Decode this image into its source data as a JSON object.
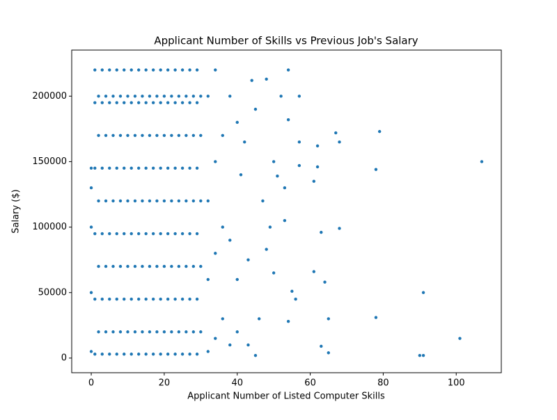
{
  "chart_data": {
    "type": "scatter",
    "title": "Applicant Number of Skills vs Previous Job's Salary",
    "x_label": "Applicant Number of Listed Computer Skills",
    "y_label": "Salary ($)",
    "color": "#1f77b4",
    "xlim": [
      -5.35,
      112.35
    ],
    "ylim": [
      -11200,
      235200
    ],
    "xticks": [
      0,
      20,
      40,
      60,
      80,
      100
    ],
    "yticks": [
      0,
      50000,
      100000,
      150000,
      200000
    ],
    "x": [
      0,
      0,
      0,
      0,
      0,
      1,
      1,
      1,
      1,
      1,
      1,
      2,
      2,
      2,
      2,
      2,
      3,
      3,
      3,
      3,
      3,
      3,
      4,
      4,
      4,
      4,
      4,
      5,
      5,
      5,
      5,
      5,
      5,
      6,
      6,
      6,
      6,
      6,
      7,
      7,
      7,
      7,
      7,
      7,
      8,
      8,
      8,
      8,
      8,
      9,
      9,
      9,
      9,
      9,
      9,
      10,
      10,
      10,
      10,
      10,
      11,
      11,
      11,
      11,
      11,
      11,
      12,
      12,
      12,
      12,
      12,
      13,
      13,
      13,
      13,
      13,
      13,
      14,
      14,
      14,
      14,
      14,
      15,
      15,
      15,
      15,
      15,
      15,
      16,
      16,
      16,
      16,
      16,
      17,
      17,
      17,
      17,
      17,
      17,
      18,
      18,
      18,
      18,
      18,
      19,
      19,
      19,
      19,
      19,
      19,
      20,
      20,
      20,
      20,
      20,
      21,
      21,
      21,
      21,
      21,
      21,
      22,
      22,
      22,
      22,
      22,
      23,
      23,
      23,
      23,
      23,
      23,
      24,
      24,
      24,
      24,
      24,
      25,
      25,
      25,
      25,
      25,
      25,
      26,
      26,
      26,
      26,
      26,
      27,
      27,
      27,
      27,
      27,
      27,
      28,
      28,
      28,
      28,
      28,
      29,
      29,
      29,
      29,
      29,
      29,
      30,
      30,
      30,
      30,
      30,
      32,
      32,
      32,
      32,
      34,
      34,
      34,
      34,
      36,
      36,
      36,
      38,
      38,
      38,
      40,
      40,
      40,
      107,
      101,
      91,
      90,
      91,
      79,
      78,
      78,
      68,
      67,
      68,
      63,
      64,
      61,
      62,
      62,
      61,
      65,
      65,
      63,
      57,
      54,
      54,
      57,
      57,
      56,
      55,
      54,
      52,
      50,
      51,
      53,
      53,
      48,
      48,
      45,
      47,
      50,
      49,
      46,
      45,
      43,
      44,
      42,
      41,
      43
    ],
    "values": [
      5000,
      50000,
      100000,
      130000,
      145000,
      3000,
      45000,
      95000,
      145000,
      195000,
      220000,
      20000,
      70000,
      120000,
      170000,
      200000,
      3000,
      45000,
      95000,
      145000,
      195000,
      220000,
      20000,
      70000,
      120000,
      170000,
      200000,
      3000,
      45000,
      95000,
      145000,
      195000,
      220000,
      20000,
      70000,
      120000,
      170000,
      200000,
      3000,
      45000,
      95000,
      145000,
      195000,
      220000,
      20000,
      70000,
      120000,
      170000,
      200000,
      3000,
      45000,
      95000,
      145000,
      195000,
      220000,
      20000,
      70000,
      120000,
      170000,
      200000,
      3000,
      45000,
      95000,
      145000,
      195000,
      220000,
      20000,
      70000,
      120000,
      170000,
      200000,
      3000,
      45000,
      95000,
      145000,
      195000,
      220000,
      20000,
      70000,
      120000,
      170000,
      200000,
      3000,
      45000,
      95000,
      145000,
      195000,
      220000,
      20000,
      70000,
      120000,
      170000,
      200000,
      3000,
      45000,
      95000,
      145000,
      195000,
      220000,
      20000,
      70000,
      120000,
      170000,
      200000,
      3000,
      45000,
      95000,
      145000,
      195000,
      220000,
      20000,
      70000,
      120000,
      170000,
      200000,
      3000,
      45000,
      95000,
      145000,
      195000,
      220000,
      20000,
      70000,
      120000,
      170000,
      200000,
      3000,
      45000,
      95000,
      145000,
      195000,
      220000,
      20000,
      70000,
      120000,
      170000,
      200000,
      3000,
      45000,
      95000,
      145000,
      195000,
      220000,
      20000,
      70000,
      120000,
      170000,
      200000,
      3000,
      45000,
      95000,
      145000,
      195000,
      220000,
      20000,
      70000,
      120000,
      170000,
      200000,
      3000,
      45000,
      95000,
      145000,
      195000,
      220000,
      20000,
      70000,
      120000,
      170000,
      200000,
      5000,
      60000,
      120000,
      200000,
      15000,
      80000,
      150000,
      220000,
      30000,
      100000,
      170000,
      10000,
      90000,
      200000,
      20000,
      60000,
      180000,
      150000,
      15000,
      50000,
      2000,
      2000,
      173000,
      144000,
      31000,
      165000,
      172000,
      99000,
      96000,
      58000,
      135000,
      162000,
      146000,
      66000,
      30000,
      4000,
      9000,
      200000,
      220000,
      182000,
      165000,
      147000,
      45000,
      51000,
      28000,
      200000,
      150000,
      139000,
      130000,
      105000,
      83000,
      213000,
      190000,
      120000,
      65000,
      100000,
      30000,
      2000,
      10000,
      212000,
      165000,
      140000,
      75000
    ]
  }
}
